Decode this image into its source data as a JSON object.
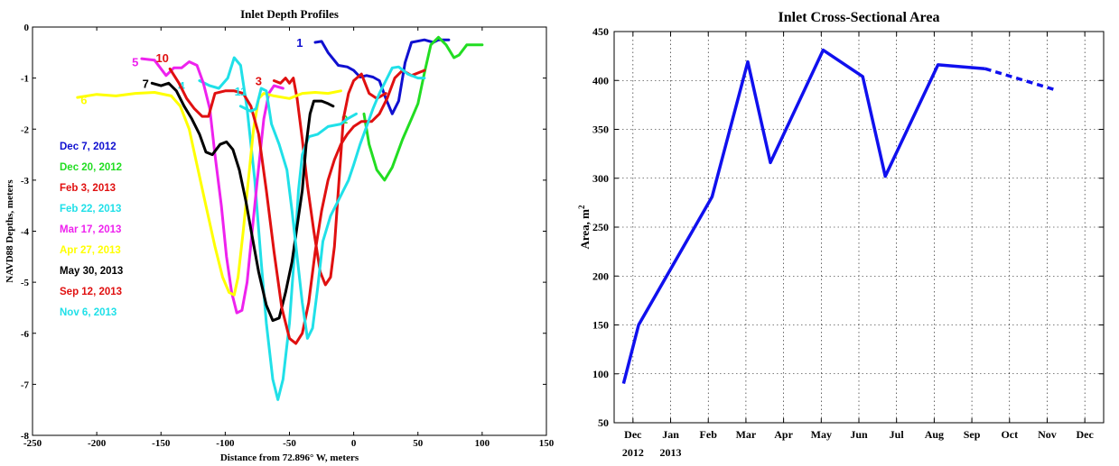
{
  "chart_data": [
    {
      "type": "line",
      "title": "Inlet Depth Profiles",
      "xlabel": "Distance from 72.896° W, meters",
      "ylabel": "NAVD88 Depths, meters",
      "xlim": [
        -250,
        150
      ],
      "ylim": [
        -8,
        0
      ],
      "xticks": [
        "-250",
        "-200",
        "-150",
        "-100",
        "-50",
        "0",
        "50",
        "100",
        "150"
      ],
      "xtick_values": [
        -250,
        -200,
        -150,
        -100,
        -50,
        0,
        50,
        100,
        150
      ],
      "yticks": [
        "-8",
        "-7",
        "-6",
        "-5",
        "-4",
        "-3",
        "-2",
        "-1",
        "0"
      ],
      "ytick_values": [
        -8,
        -7,
        -6,
        -5,
        -4,
        -3,
        -2,
        -1,
        0
      ],
      "legend_placement": "left",
      "series": [
        {
          "name": "Dec 7, 2012",
          "label": "1",
          "color": "#1010d0",
          "label_pos": [
            -42,
            -0.3
          ],
          "points": [
            [
              -30,
              -0.3
            ],
            [
              -25,
              -0.28
            ],
            [
              -20,
              -0.5
            ],
            [
              -12,
              -0.75
            ],
            [
              -5,
              -0.78
            ],
            [
              0,
              -0.85
            ],
            [
              5,
              -0.98
            ],
            [
              10,
              -0.95
            ],
            [
              15,
              -0.98
            ],
            [
              20,
              -1.05
            ],
            [
              25,
              -1.4
            ],
            [
              30,
              -1.7
            ],
            [
              35,
              -1.45
            ],
            [
              40,
              -0.7
            ],
            [
              45,
              -0.3
            ],
            [
              55,
              -0.25
            ],
            [
              62,
              -0.3
            ],
            [
              66,
              -0.25
            ],
            [
              74,
              -0.25
            ]
          ]
        },
        {
          "name": "Dec 20, 2012",
          "label": "2",
          "color": "#22dd22",
          "label_pos": [
            -7,
            -1.8
          ],
          "points": [
            [
              8,
              -1.7
            ],
            [
              12,
              -2.3
            ],
            [
              18,
              -2.8
            ],
            [
              24,
              -3.0
            ],
            [
              30,
              -2.75
            ],
            [
              38,
              -2.2
            ],
            [
              45,
              -1.8
            ],
            [
              50,
              -1.5
            ],
            [
              55,
              -0.9
            ],
            [
              60,
              -0.35
            ],
            [
              66,
              -0.2
            ],
            [
              72,
              -0.35
            ],
            [
              78,
              -0.6
            ],
            [
              82,
              -0.55
            ],
            [
              88,
              -0.35
            ],
            [
              100,
              -0.35
            ]
          ]
        },
        {
          "name": "Feb 3, 2013",
          "label": "3",
          "color": "#e01010",
          "label_pos": [
            -74,
            -1.05
          ],
          "points": [
            [
              -62,
              -1.05
            ],
            [
              -57,
              -1.1
            ],
            [
              -53,
              -1.0
            ],
            [
              -50,
              -1.1
            ],
            [
              -47,
              -1.0
            ],
            [
              -44,
              -1.4
            ],
            [
              -40,
              -2.2
            ],
            [
              -36,
              -3.1
            ],
            [
              -31,
              -4.0
            ],
            [
              -26,
              -4.8
            ],
            [
              -22,
              -5.05
            ],
            [
              -18,
              -4.9
            ],
            [
              -15,
              -4.3
            ],
            [
              -12,
              -3.2
            ],
            [
              -8,
              -1.8
            ],
            [
              -4,
              -1.3
            ],
            [
              0,
              -1.05
            ],
            [
              6,
              -0.92
            ],
            [
              12,
              -1.3
            ],
            [
              18,
              -1.4
            ],
            [
              25,
              -1.3
            ]
          ]
        },
        {
          "name": "Feb 22, 2013",
          "label": "4",
          "color": "#20e0e8",
          "label_pos": [
            -134,
            -1.15
          ],
          "points": [
            [
              -120,
              -1.05
            ],
            [
              -112,
              -1.15
            ],
            [
              -105,
              -1.2
            ],
            [
              -98,
              -1.0
            ],
            [
              -93,
              -0.6
            ],
            [
              -88,
              -0.75
            ],
            [
              -83,
              -1.6
            ],
            [
              -77,
              -3.0
            ],
            [
              -72,
              -4.6
            ],
            [
              -68,
              -5.8
            ],
            [
              -63,
              -6.9
            ],
            [
              -59,
              -7.3
            ],
            [
              -55,
              -6.9
            ],
            [
              -50,
              -5.8
            ],
            [
              -46,
              -4.4
            ],
            [
              -43,
              -3.2
            ],
            [
              -40,
              -2.5
            ],
            [
              -35,
              -2.15
            ],
            [
              -28,
              -2.1
            ],
            [
              -20,
              -1.95
            ],
            [
              -10,
              -1.9
            ],
            [
              -5,
              -1.8
            ],
            [
              2,
              -1.7
            ]
          ]
        },
        {
          "name": "Mar 17, 2013",
          "label": "5",
          "color": "#ee22ee",
          "label_pos": [
            -170,
            -0.68
          ],
          "points": [
            [
              -165,
              -0.62
            ],
            [
              -155,
              -0.65
            ],
            [
              -146,
              -0.95
            ],
            [
              -140,
              -0.8
            ],
            [
              -134,
              -0.8
            ],
            [
              -128,
              -0.68
            ],
            [
              -122,
              -0.75
            ],
            [
              -117,
              -1.1
            ],
            [
              -112,
              -1.6
            ],
            [
              -108,
              -2.5
            ],
            [
              -103,
              -3.5
            ],
            [
              -99,
              -4.5
            ],
            [
              -95,
              -5.2
            ],
            [
              -91,
              -5.6
            ],
            [
              -87,
              -5.55
            ],
            [
              -83,
              -5.0
            ],
            [
              -79,
              -4.0
            ],
            [
              -75,
              -3.0
            ],
            [
              -70,
              -1.8
            ],
            [
              -66,
              -1.3
            ],
            [
              -62,
              -1.15
            ],
            [
              -55,
              -1.2
            ]
          ]
        },
        {
          "name": "Apr 27, 2013",
          "label": "6",
          "color": "#ffff00",
          "label_pos": [
            -210,
            -1.42
          ],
          "points": [
            [
              -215,
              -1.38
            ],
            [
              -200,
              -1.32
            ],
            [
              -185,
              -1.35
            ],
            [
              -170,
              -1.3
            ],
            [
              -155,
              -1.28
            ],
            [
              -142,
              -1.35
            ],
            [
              -135,
              -1.55
            ],
            [
              -128,
              -2.0
            ],
            [
              -122,
              -2.7
            ],
            [
              -115,
              -3.5
            ],
            [
              -108,
              -4.3
            ],
            [
              -102,
              -4.9
            ],
            [
              -97,
              -5.2
            ],
            [
              -93,
              -5.25
            ],
            [
              -90,
              -4.9
            ],
            [
              -86,
              -4.0
            ],
            [
              -82,
              -3.0
            ],
            [
              -78,
              -2.0
            ],
            [
              -74,
              -1.4
            ],
            [
              -70,
              -1.3
            ],
            [
              -62,
              -1.35
            ],
            [
              -50,
              -1.4
            ],
            [
              -40,
              -1.3
            ],
            [
              -30,
              -1.28
            ],
            [
              -20,
              -1.3
            ],
            [
              -10,
              -1.25
            ]
          ]
        },
        {
          "name": "May 30, 2013",
          "label": "7",
          "color": "#000000",
          "label_pos": [
            -162,
            -1.1
          ],
          "points": [
            [
              -157,
              -1.1
            ],
            [
              -150,
              -1.15
            ],
            [
              -144,
              -1.1
            ],
            [
              -138,
              -1.25
            ],
            [
              -132,
              -1.55
            ],
            [
              -126,
              -1.8
            ],
            [
              -120,
              -2.1
            ],
            [
              -115,
              -2.45
            ],
            [
              -110,
              -2.5
            ],
            [
              -104,
              -2.3
            ],
            [
              -99,
              -2.25
            ],
            [
              -94,
              -2.4
            ],
            [
              -89,
              -2.8
            ],
            [
              -84,
              -3.4
            ],
            [
              -79,
              -4.1
            ],
            [
              -74,
              -4.8
            ],
            [
              -68,
              -5.45
            ],
            [
              -63,
              -5.75
            ],
            [
              -58,
              -5.7
            ],
            [
              -53,
              -5.2
            ],
            [
              -48,
              -4.6
            ],
            [
              -44,
              -3.9
            ],
            [
              -40,
              -3.2
            ],
            [
              -37,
              -2.3
            ],
            [
              -34,
              -1.7
            ],
            [
              -31,
              -1.45
            ],
            [
              -25,
              -1.45
            ],
            [
              -20,
              -1.5
            ],
            [
              -16,
              -1.55
            ]
          ]
        },
        {
          "name": "Sep 12, 2013",
          "label": "10",
          "color": "#e01010",
          "label_pos": [
            -149,
            -0.6
          ],
          "points": [
            [
              -143,
              -0.82
            ],
            [
              -136,
              -1.1
            ],
            [
              -130,
              -1.4
            ],
            [
              -124,
              -1.6
            ],
            [
              -118,
              -1.75
            ],
            [
              -113,
              -1.75
            ],
            [
              -108,
              -1.3
            ],
            [
              -100,
              -1.25
            ],
            [
              -93,
              -1.25
            ],
            [
              -86,
              -1.3
            ],
            [
              -80,
              -1.55
            ],
            [
              -74,
              -2.1
            ],
            [
              -68,
              -3.2
            ],
            [
              -62,
              -4.4
            ],
            [
              -56,
              -5.5
            ],
            [
              -50,
              -6.1
            ],
            [
              -45,
              -6.2
            ],
            [
              -40,
              -6.0
            ],
            [
              -35,
              -5.4
            ],
            [
              -30,
              -4.4
            ],
            [
              -25,
              -3.6
            ],
            [
              -20,
              -3.0
            ],
            [
              -15,
              -2.6
            ],
            [
              -10,
              -2.3
            ],
            [
              -5,
              -2.1
            ],
            [
              0,
              -1.95
            ],
            [
              6,
              -1.85
            ],
            [
              14,
              -1.85
            ],
            [
              20,
              -1.7
            ],
            [
              26,
              -1.4
            ],
            [
              32,
              -1.0
            ],
            [
              38,
              -0.85
            ],
            [
              45,
              -0.95
            ],
            [
              55,
              -0.85
            ]
          ]
        },
        {
          "name": "Nov 6, 2013",
          "label": "11",
          "color": "#20e0e8",
          "label_pos": [
            -88,
            -1.25
          ],
          "points": [
            [
              -88,
              -1.55
            ],
            [
              -84,
              -1.6
            ],
            [
              -80,
              -1.65
            ],
            [
              -76,
              -1.6
            ],
            [
              -72,
              -1.2
            ],
            [
              -68,
              -1.25
            ],
            [
              -64,
              -1.9
            ],
            [
              -58,
              -2.3
            ],
            [
              -52,
              -2.8
            ],
            [
              -48,
              -3.6
            ],
            [
              -44,
              -4.5
            ],
            [
              -40,
              -5.4
            ],
            [
              -36,
              -6.1
            ],
            [
              -32,
              -5.9
            ],
            [
              -28,
              -5.1
            ],
            [
              -24,
              -4.2
            ],
            [
              -18,
              -3.7
            ],
            [
              -10,
              -3.3
            ],
            [
              -4,
              -3.0
            ],
            [
              0,
              -2.7
            ],
            [
              5,
              -2.3
            ],
            [
              10,
              -1.95
            ],
            [
              15,
              -1.6
            ],
            [
              20,
              -1.3
            ],
            [
              25,
              -1.05
            ],
            [
              30,
              -0.8
            ],
            [
              35,
              -0.78
            ],
            [
              42,
              -0.92
            ],
            [
              50,
              -1.0
            ],
            [
              55,
              -1.0
            ]
          ]
        }
      ]
    },
    {
      "type": "line",
      "title": "Inlet Cross-Sectional Area",
      "ylabel": "Area, m",
      "ylabel_sup": "2",
      "ylim": [
        50,
        450
      ],
      "yticks": [
        "50",
        "100",
        "150",
        "200",
        "250",
        "300",
        "350",
        "400",
        "450"
      ],
      "ytick_values": [
        50,
        100,
        150,
        200,
        250,
        300,
        350,
        400,
        450
      ],
      "xlim": [
        0,
        13
      ],
      "months": [
        "Dec",
        "Jan",
        "Feb",
        "Mar",
        "Apr",
        "May",
        "Jun",
        "Jul",
        "Aug",
        "Sep",
        "Oct",
        "Nov",
        "Dec"
      ],
      "month_positions": [
        0.5,
        1.5,
        2.5,
        3.5,
        4.5,
        5.5,
        6.5,
        7.5,
        8.5,
        9.5,
        10.5,
        11.5,
        12.5
      ],
      "years": [
        {
          "label": "2012",
          "pos": 0.5
        },
        {
          "label": "2013",
          "pos": 1.5
        }
      ],
      "color": "#1010ee",
      "solid": [
        [
          0.25,
          90
        ],
        [
          0.65,
          150
        ],
        [
          2.6,
          281
        ],
        [
          3.55,
          419
        ],
        [
          4.15,
          316
        ],
        [
          5.55,
          431
        ],
        [
          6.6,
          404
        ],
        [
          7.2,
          302
        ],
        [
          8.6,
          416
        ],
        [
          9.85,
          412
        ]
      ],
      "dashed": [
        [
          9.85,
          412
        ],
        [
          11.75,
          390
        ]
      ]
    }
  ]
}
